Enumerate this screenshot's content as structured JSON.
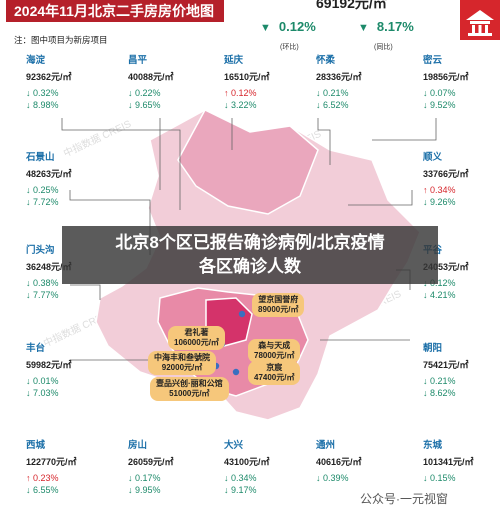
{
  "header": {
    "title": "2024年11月北京二手房房价地图",
    "note": "注：图中项目为新房项目"
  },
  "summary": {
    "avg_price": "69192元/㎡",
    "mom": {
      "value": "0.12%",
      "label": "(环比)"
    },
    "yoy": {
      "value": "8.17%",
      "label": "(同比)"
    }
  },
  "districts": [
    {
      "name": "海淀",
      "price": "92362元/㎡",
      "mom": "0.32%",
      "yoy": "8.98%",
      "mom_dir": "down",
      "yoy_dir": "down"
    },
    {
      "name": "昌平",
      "price": "40088元/㎡",
      "mom": "0.22%",
      "yoy": "9.65%",
      "mom_dir": "down",
      "yoy_dir": "down"
    },
    {
      "name": "延庆",
      "price": "16510元/㎡",
      "mom": "0.12%",
      "yoy": "3.22%",
      "mom_dir": "up",
      "yoy_dir": "down"
    },
    {
      "name": "怀柔",
      "price": "28336元/㎡",
      "mom": "0.21%",
      "yoy": "6.52%",
      "mom_dir": "down",
      "yoy_dir": "down"
    },
    {
      "name": "密云",
      "price": "19856元/㎡",
      "mom": "0.07%",
      "yoy": "9.52%",
      "mom_dir": "down",
      "yoy_dir": "down"
    },
    {
      "name": "石景山",
      "price": "48263元/㎡",
      "mom": "0.25%",
      "yoy": "7.72%",
      "mom_dir": "down",
      "yoy_dir": "down"
    },
    {
      "name": "顺义",
      "price": "33766元/㎡",
      "mom": "0.34%",
      "yoy": "9.26%",
      "mom_dir": "up",
      "yoy_dir": "down"
    },
    {
      "name": "门头沟",
      "price": "36248元/㎡",
      "mom": "0.38%",
      "yoy": "7.77%",
      "mom_dir": "down",
      "yoy_dir": "down"
    },
    {
      "name": "平谷",
      "price": "24053元/㎡",
      "mom": "0.12%",
      "yoy": "4.21%",
      "mom_dir": "down",
      "yoy_dir": "down"
    },
    {
      "name": "丰台",
      "price": "59982元/㎡",
      "mom": "0.01%",
      "yoy": "7.03%",
      "mom_dir": "down",
      "yoy_dir": "down"
    },
    {
      "name": "朝阳",
      "price": "75421元/㎡",
      "mom": "0.21%",
      "yoy": "8.62%",
      "mom_dir": "down",
      "yoy_dir": "down"
    },
    {
      "name": "西城",
      "price": "122770元/㎡",
      "mom": "0.23%",
      "yoy": "6.55%",
      "mom_dir": "up",
      "yoy_dir": "down"
    },
    {
      "name": "房山",
      "price": "26059元/㎡",
      "mom": "0.17%",
      "yoy": "9.95%",
      "mom_dir": "down",
      "yoy_dir": "down"
    },
    {
      "name": "大兴",
      "price": "43100元/㎡",
      "mom": "0.34%",
      "yoy": "9.17%",
      "mom_dir": "down",
      "yoy_dir": "down"
    },
    {
      "name": "通州",
      "price": "40616元/㎡",
      "mom": "0.39%",
      "yoy": "",
      "mom_dir": "down",
      "yoy_dir": "down"
    },
    {
      "name": "东城",
      "price": "101341元/㎡",
      "mom": "0.15%",
      "yoy": "",
      "mom_dir": "down",
      "yoy_dir": "down"
    }
  ],
  "projects": [
    {
      "name": "望京国誉府",
      "price": "89000元/㎡"
    },
    {
      "name": "君礼著",
      "price": "106000元/㎡"
    },
    {
      "name": "中海丰和叁號院",
      "price": "92000元/㎡"
    },
    {
      "name": "森与天成",
      "price": "78000元/㎡"
    },
    {
      "name": "京宸",
      "price": "47400元/㎡"
    },
    {
      "name": "壹品兴创·丽和公馆",
      "price": "51000元/㎡"
    }
  ],
  "banner": {
    "line1": "北京8个区已报告确诊病例/北京疫情",
    "line2": "各区确诊人数"
  },
  "watermark": "中指数据 CREIS",
  "footer": "公众号·一元视窗",
  "colors": {
    "red": "#d6262c",
    "green": "#1d8a6a",
    "brand": "#b5202a",
    "map_light": "#f2cdd8",
    "map_mid": "#e88aa7",
    "map_dark": "#d4336a"
  }
}
